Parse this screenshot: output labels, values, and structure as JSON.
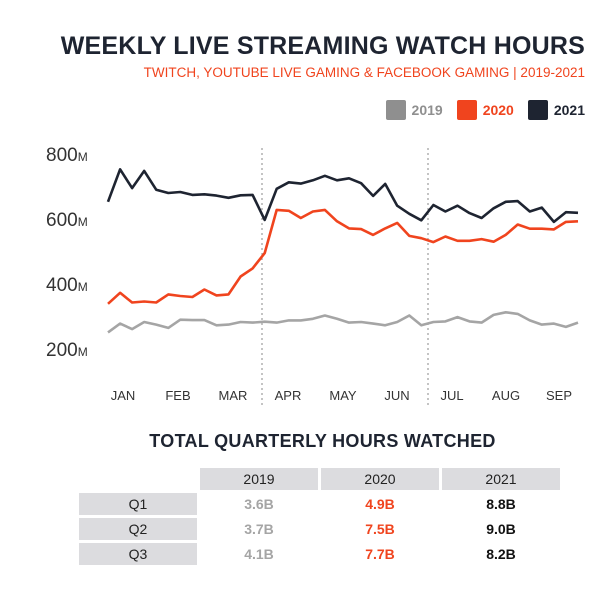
{
  "title": "WEEKLY LIVE STREAMING WATCH HOURS",
  "subtitle": "TWITCH, YOUTUBE LIVE GAMING & FACEBOOK GAMING  |  2019-2021",
  "legend": [
    {
      "label": "2019",
      "color": "#8f8f8f"
    },
    {
      "label": "2020",
      "color": "#f0441e"
    },
    {
      "label": "2021",
      "color": "#1e2431"
    }
  ],
  "chart_data": {
    "type": "line",
    "title": "WEEKLY LIVE STREAMING WATCH HOURS",
    "subtitle": "TWITCH, YOUTUBE LIVE GAMING & FACEBOOK GAMING  |  2019-2021",
    "xlabel": "",
    "ylabel": "",
    "ylim": [
      150,
      820
    ],
    "y_ticks": [
      {
        "value": 800,
        "label": "800",
        "unit": "M"
      },
      {
        "value": 600,
        "label": "600",
        "unit": "M"
      },
      {
        "value": 400,
        "label": "400",
        "unit": "M"
      },
      {
        "value": 200,
        "label": "200",
        "unit": "M"
      }
    ],
    "months": [
      "JAN",
      "FEB",
      "MAR",
      "APR",
      "MAY",
      "JUN",
      "JUL",
      "AUG",
      "SEP"
    ],
    "quarter_dividers_after_month": [
      3,
      6
    ],
    "grid": false,
    "legend_position": "top-right",
    "series": [
      {
        "name": "2019",
        "color": "#a5a5a5",
        "values": [
          248,
          275,
          258,
          280,
          272,
          262,
          287,
          286,
          286,
          270,
          272,
          280,
          278,
          281,
          278,
          285,
          285,
          290,
          300,
          290,
          278,
          280,
          275,
          270,
          280,
          300,
          270,
          280,
          282,
          295,
          282,
          278,
          302,
          310,
          305,
          285,
          272,
          275,
          265,
          278
        ]
      },
      {
        "name": "2020",
        "color": "#f0441e",
        "values": [
          336,
          370,
          340,
          343,
          340,
          365,
          360,
          357,
          380,
          362,
          365,
          420,
          445,
          492,
          625,
          622,
          600,
          620,
          625,
          590,
          568,
          566,
          548,
          568,
          585,
          545,
          538,
          526,
          543,
          530,
          530,
          535,
          527,
          548,
          580,
          567,
          567,
          565,
          588,
          590
        ]
      },
      {
        "name": "2021",
        "color": "#1e2431",
        "values": [
          650,
          750,
          692,
          745,
          687,
          677,
          680,
          671,
          673,
          669,
          662,
          670,
          671,
          594,
          690,
          710,
          706,
          716,
          730,
          716,
          722,
          707,
          668,
          705,
          638,
          613,
          593,
          640,
          620,
          638,
          615,
          600,
          630,
          650,
          652,
          620,
          632,
          588,
          618,
          616
        ]
      }
    ]
  },
  "table": {
    "title": "TOTAL QUARTERLY HOURS WATCHED",
    "headers": [
      "2019",
      "2020",
      "2021"
    ],
    "rows": [
      {
        "label": "Q1",
        "v2019": "3.6B",
        "v2020": "4.9B",
        "v2021": "8.8B"
      },
      {
        "label": "Q2",
        "v2019": "3.7B",
        "v2020": "7.5B",
        "v2021": "9.0B"
      },
      {
        "label": "Q3",
        "v2019": "4.1B",
        "v2020": "7.7B",
        "v2021": "8.2B"
      }
    ]
  }
}
